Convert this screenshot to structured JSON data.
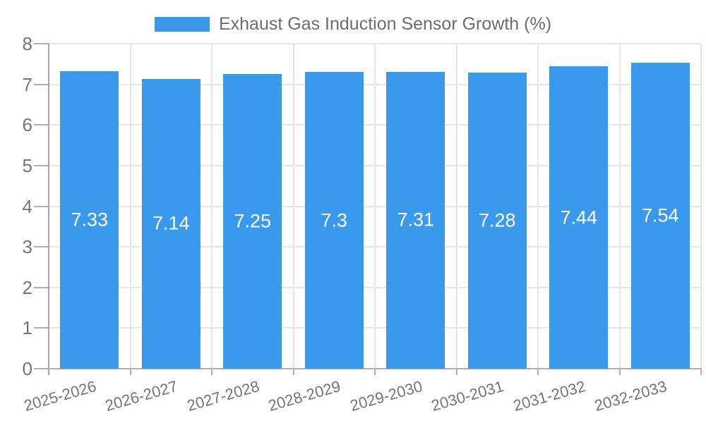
{
  "chart_data": {
    "type": "bar",
    "title": "",
    "legend": "Exhaust Gas Induction Sensor Growth (%)",
    "legend_position": "top",
    "categories": [
      "2025-2026",
      "2026-2027",
      "2027-2028",
      "2028-2029",
      "2029-2030",
      "2030-2031",
      "2031-2032",
      "2032-2033"
    ],
    "values": [
      7.33,
      7.14,
      7.25,
      7.3,
      7.31,
      7.28,
      7.44,
      7.54
    ],
    "xlabel": "",
    "ylabel": "",
    "ylim": [
      0,
      8
    ],
    "yticks": [
      0,
      1,
      2,
      3,
      4,
      5,
      6,
      7,
      8
    ],
    "grid": true,
    "colors": {
      "bar": "#3B99EC",
      "value_label": "#ffffff",
      "axis_text": "#757575",
      "legend_text": "#6d6d6d",
      "gridline": "#e6e6e6",
      "axis_line": "#a6a6a6",
      "baseline": "#b0b0b0",
      "tick": "#b0b0b0",
      "background": "#ffffff"
    }
  }
}
